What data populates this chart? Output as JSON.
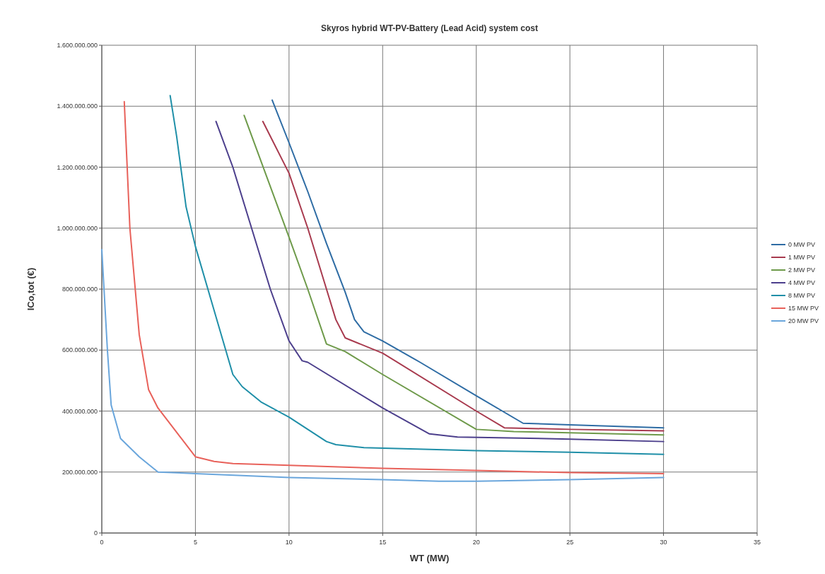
{
  "chart_data": {
    "type": "line",
    "title": "Skyros hybrid WT-PV-Battery (Lead Acid) system cost",
    "xlabel": "WT (MW)",
    "ylabel": "ICo,tot  (€)",
    "xlim": [
      0,
      35
    ],
    "xticks": [
      0,
      5,
      10,
      15,
      20,
      25,
      30,
      35
    ],
    "ylim": [
      0,
      1600000000
    ],
    "yticks": [
      0,
      {
        "value": 200000000,
        "label": "200.000.000"
      },
      {
        "value": 400000000,
        "label": "400.000.000"
      },
      {
        "value": 600000000,
        "label": "600.000.000"
      },
      {
        "value": 800000000,
        "label": "800.000.000"
      },
      {
        "value": 1000000000,
        "label": "1.000.000.000"
      },
      {
        "value": 1200000000,
        "label": "1.200.000.000"
      },
      {
        "value": 1400000000,
        "label": "1.400.000.000"
      },
      {
        "value": 1600000000,
        "label": "1.600.000.000"
      }
    ],
    "grid": true,
    "legend": "right",
    "marker": "none",
    "line_style": "solid",
    "series": [
      {
        "name": "0 MW PV",
        "color": "#2e6ca4",
        "x": [
          9.1,
          10,
          11,
          12,
          13,
          13.5,
          14,
          15,
          17,
          20,
          22.5,
          25,
          30
        ],
        "values": [
          1420000000,
          1280000000,
          1120000000,
          950000000,
          790000000,
          700000000,
          660000000,
          630000000,
          560000000,
          450000000,
          360000000,
          355000000,
          345000000
        ]
      },
      {
        "name": "1 MW PV",
        "color": "#a83a4e",
        "x": [
          8.6,
          10,
          11,
          12,
          12.5,
          13,
          15,
          20,
          21.5,
          25,
          30
        ],
        "values": [
          1350000000,
          1180000000,
          1000000000,
          800000000,
          700000000,
          640000000,
          590000000,
          400000000,
          345000000,
          340000000,
          335000000
        ]
      },
      {
        "name": "2 MW PV",
        "color": "#6e9a4a",
        "x": [
          7.6,
          10,
          11,
          12,
          13,
          15,
          20,
          22,
          30
        ],
        "values": [
          1370000000,
          970000000,
          800000000,
          620000000,
          595000000,
          520000000,
          340000000,
          333000000,
          322000000
        ]
      },
      {
        "name": "4 MW PV",
        "color": "#4c3f8c",
        "x": [
          6.1,
          7,
          8,
          9,
          10,
          10.7,
          11,
          15,
          17.5,
          19,
          25,
          30
        ],
        "values": [
          1350000000,
          1200000000,
          1000000000,
          800000000,
          630000000,
          565000000,
          560000000,
          410000000,
          325000000,
          315000000,
          308000000,
          300000000
        ]
      },
      {
        "name": "8 MW PV",
        "color": "#1f8fa8",
        "x": [
          3.65,
          4,
          4.5,
          5,
          6,
          7,
          7.5,
          8.5,
          10,
          12,
          12.5,
          14,
          20,
          25,
          30
        ],
        "values": [
          1435000000,
          1300000000,
          1070000000,
          940000000,
          730000000,
          520000000,
          480000000,
          430000000,
          380000000,
          300000000,
          290000000,
          280000000,
          270000000,
          265000000,
          258000000
        ]
      },
      {
        "name": "15 MW PV",
        "color": "#e8615a",
        "x": [
          1.2,
          1.5,
          2,
          2.5,
          3,
          4,
          5,
          6,
          7,
          10,
          15,
          20,
          25,
          30
        ],
        "values": [
          1415000000,
          1000000000,
          650000000,
          470000000,
          410000000,
          330000000,
          250000000,
          235000000,
          228000000,
          222000000,
          212000000,
          205000000,
          198000000,
          195000000
        ]
      },
      {
        "name": "20 MW PV",
        "color": "#6aa6dc",
        "x": [
          0,
          0.3,
          0.5,
          1,
          2,
          3,
          5,
          10,
          15,
          18,
          20,
          25,
          30
        ],
        "values": [
          930000000,
          600000000,
          420000000,
          310000000,
          250000000,
          200000000,
          195000000,
          182000000,
          175000000,
          170000000,
          170000000,
          175000000,
          182000000
        ]
      }
    ]
  }
}
